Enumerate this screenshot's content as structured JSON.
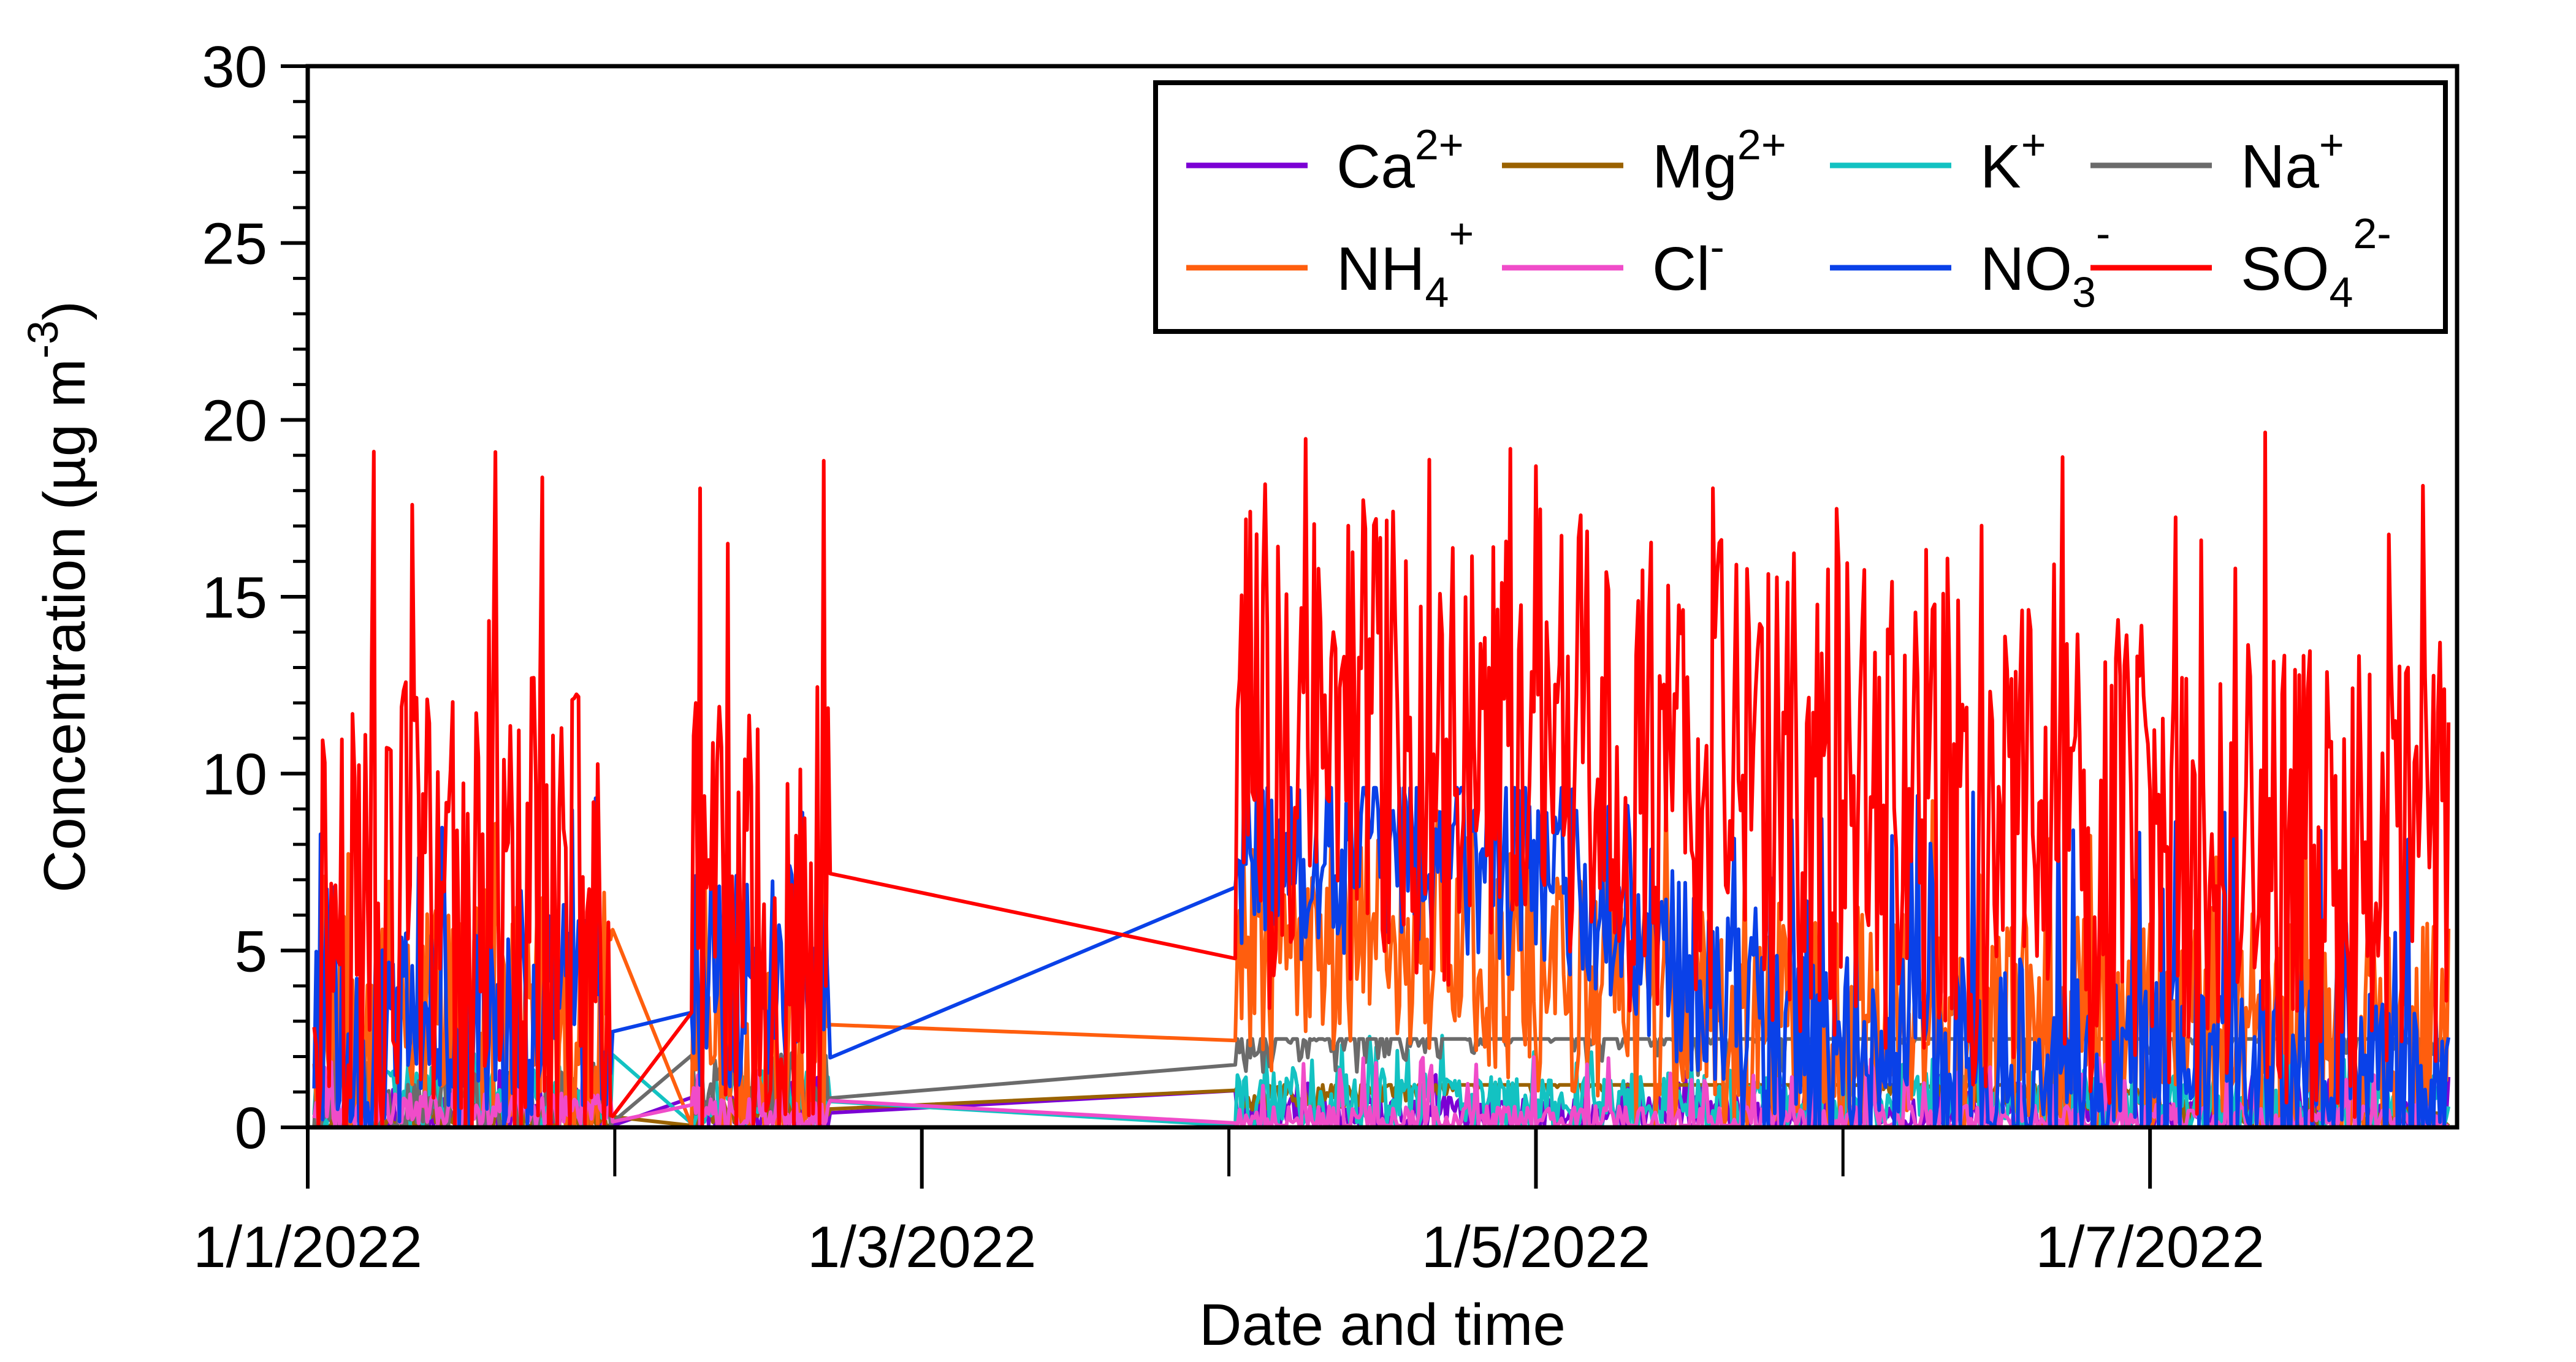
{
  "chart_data": {
    "type": "line",
    "title": "",
    "xlabel": "Date and time",
    "ylabel": "Concentration (µg m⁻³)",
    "ylabel_parts": {
      "main": "Concentration (µg m",
      "sup": "-3",
      "close": ")"
    },
    "ylim": [
      0,
      30
    ],
    "yticks": [
      0,
      5,
      10,
      15,
      20,
      25,
      30
    ],
    "ytick_labels": [
      "0",
      "5",
      "10",
      "15",
      "20",
      "25",
      "30"
    ],
    "xlim": [
      "2022-01-01",
      "2022-01-08"
    ],
    "x_major_ticks": [
      "2022-01-01",
      "2022-01-03",
      "2022-01-05",
      "2022-01-07"
    ],
    "x_minor_ticks": [
      "2022-01-02",
      "2022-01-04",
      "2022-01-06"
    ],
    "x_tick_labels": [
      "1/1/2022",
      "1/3/2022",
      "1/5/2022",
      "1/7/2022"
    ],
    "legend_position": "top-right",
    "grid": false,
    "series": [
      {
        "name": "Ca2+",
        "base": "Ca",
        "sub": "",
        "sup": "2+",
        "color": "#7b00d4",
        "mean": 0.3,
        "amp": 0.6,
        "spike": 1.6,
        "seed": 11,
        "anchors": [
          [
            "2022-01-01T12:00",
            0.3
          ],
          [
            "2022-01-03T12:00",
            0.2
          ],
          [
            "2022-01-04T12:00",
            0.3
          ],
          [
            "2022-01-05T12:00",
            0.4
          ],
          [
            "2022-01-07T12:00",
            0.3
          ]
        ]
      },
      {
        "name": "Mg2+",
        "base": "Mg",
        "sub": "",
        "sup": "2+",
        "color": "#9a6200",
        "mean": 0.2,
        "amp": 0.4,
        "spike": 1.2,
        "seed": 23,
        "anchors": [
          [
            "2022-01-01T12:00",
            0.2
          ],
          [
            "2022-01-04T12:00",
            1.0
          ],
          [
            "2022-01-05T06:00",
            2.2
          ],
          [
            "2022-01-07T12:00",
            0.2
          ]
        ]
      },
      {
        "name": "K+",
        "base": "K",
        "sub": "",
        "sup": "+",
        "color": "#13c2c2",
        "mean": 0.6,
        "amp": 0.9,
        "spike": 2.6,
        "seed": 37,
        "anchors": [
          [
            "2022-01-01T12:00",
            0.8
          ],
          [
            "2022-01-04T12:00",
            0.6
          ],
          [
            "2022-01-06T12:00",
            0.8
          ],
          [
            "2022-01-07T12:00",
            0.6
          ]
        ]
      },
      {
        "name": "Na+",
        "base": "Na",
        "sub": "",
        "sup": "+",
        "color": "#6b6b6b",
        "mean": 0.5,
        "amp": 1.0,
        "spike": 2.5,
        "seed": 41,
        "anchors": [
          [
            "2022-01-01T12:00",
            0.5
          ],
          [
            "2022-01-04T18:00",
            3.0
          ],
          [
            "2022-01-06T00:00",
            3.5
          ],
          [
            "2022-01-06T12:00",
            3.2
          ],
          [
            "2022-01-07T12:00",
            3.0
          ]
        ]
      },
      {
        "name": "NH4+",
        "base": "NH",
        "sub": "4",
        "sup": "+",
        "color": "#ff5e0e",
        "mean": 3.0,
        "amp": 3.5,
        "spike": 9.8,
        "seed": 53,
        "anchors": [
          [
            "2022-01-01T12:00",
            3.5
          ],
          [
            "2022-01-02T18:00",
            1.3
          ],
          [
            "2022-01-04T12:00",
            6.0
          ],
          [
            "2022-01-05T12:00",
            3.0
          ],
          [
            "2022-01-07T12:00",
            2.5
          ]
        ]
      },
      {
        "name": "Cl-",
        "base": "Cl",
        "sub": "",
        "sup": "-",
        "color": "#f04cc9",
        "mean": 0.3,
        "amp": 0.5,
        "spike": 2.0,
        "seed": 67,
        "anchors": [
          [
            "2022-01-01T12:00",
            0.5
          ],
          [
            "2022-01-04T12:00",
            0.1
          ],
          [
            "2022-01-05T12:00",
            0.1
          ],
          [
            "2022-01-07T12:00",
            0.2
          ]
        ]
      },
      {
        "name": "NO3-",
        "base": "NO",
        "sub": "3",
        "sup": "-",
        "color": "#0a41e8",
        "mean": 2.0,
        "amp": 3.0,
        "spike": 9.6,
        "seed": 79,
        "anchors": [
          [
            "2022-01-01T12:00",
            2.5
          ],
          [
            "2022-01-04T12:00",
            8.0
          ],
          [
            "2022-01-05T06:00",
            6.5
          ],
          [
            "2022-01-05T18:00",
            2.0
          ],
          [
            "2022-01-07T12:00",
            1.5
          ]
        ]
      },
      {
        "name": "SO42-",
        "base": "SO",
        "sub": "4",
        "sup": "2-",
        "color": "#ff0000",
        "mean": 6.0,
        "amp": 7.0,
        "spike": 19.8,
        "seed": 97,
        "anchors": [
          [
            "2022-01-01T12:00",
            6.0
          ],
          [
            "2022-01-02T12:00",
            5.0
          ],
          [
            "2022-01-04T12:00",
            11.0
          ],
          [
            "2022-01-05T12:00",
            10.0
          ],
          [
            "2022-01-06T12:00",
            8.0
          ],
          [
            "2022-01-07T12:00",
            7.0
          ]
        ]
      }
    ],
    "sampling_periods": [
      [
        "2022-01-01T00:30",
        "2022-01-02T00:00"
      ],
      [
        "2022-01-02T06:00",
        "2022-01-02T17:00"
      ],
      [
        "2022-01-04T00:30",
        "2022-01-07T23:30"
      ]
    ]
  }
}
